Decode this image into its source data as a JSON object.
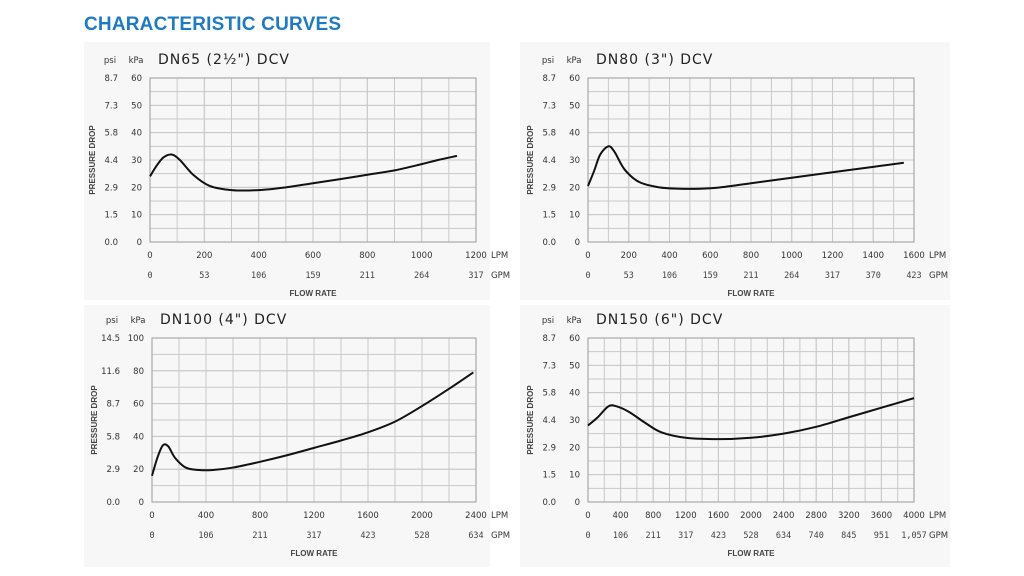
{
  "page": {
    "title": "CHARACTERISTIC CURVES"
  },
  "chart_data": [
    {
      "type": "line",
      "title": "DN65 (2½\") DCV",
      "ylabel": "PRESSURE DROP",
      "xlabel": "FLOW RATE",
      "y_units": [
        "psi",
        "kPa"
      ],
      "x_units": [
        "LPM",
        "GPM"
      ],
      "xlim": [
        0,
        1200
      ],
      "ylim": [
        0,
        60
      ],
      "x_ticks": [
        0,
        200,
        400,
        600,
        800,
        1000,
        1200
      ],
      "x_ticks_secondary": [
        "0",
        "53",
        "106",
        "159",
        "211",
        "264",
        "317"
      ],
      "y_ticks": [
        0,
        10,
        20,
        30,
        40,
        50,
        60
      ],
      "y_ticks_secondary": [
        "0.0",
        "1.5",
        "2.9",
        "4.4",
        "5.8",
        "7.3",
        "8.7"
      ],
      "grid": true,
      "series": [
        {
          "values": [
            [
              0,
              24
            ],
            [
              25,
              28
            ],
            [
              50,
              31
            ],
            [
              80,
              32
            ],
            [
              110,
              30
            ],
            [
              160,
              24.5
            ],
            [
              220,
              20.5
            ],
            [
              300,
              19
            ],
            [
              400,
              19
            ],
            [
              500,
              20
            ],
            [
              600,
              21.5
            ],
            [
              700,
              23
            ],
            [
              800,
              24.6
            ],
            [
              900,
              26.2
            ],
            [
              1000,
              28.5
            ],
            [
              1060,
              30
            ],
            [
              1130,
              31.5
            ]
          ]
        }
      ]
    },
    {
      "type": "line",
      "title": "DN80 (3\") DCV",
      "ylabel": "PRESSURE DROP",
      "xlabel": "FLOW RATE",
      "y_units": [
        "psi",
        "kPa"
      ],
      "x_units": [
        "LPM",
        "GPM"
      ],
      "xlim": [
        0,
        1600
      ],
      "ylim": [
        0,
        60
      ],
      "x_ticks": [
        0,
        200,
        400,
        600,
        800,
        1000,
        1200,
        1400,
        1600
      ],
      "x_ticks_secondary": [
        "0",
        "53",
        "106",
        "159",
        "211",
        "264",
        "317",
        "370",
        "423"
      ],
      "y_ticks": [
        0,
        10,
        20,
        30,
        40,
        50,
        60
      ],
      "y_ticks_secondary": [
        "0.0",
        "1.5",
        "2.9",
        "4.4",
        "5.8",
        "7.3",
        "8.7"
      ],
      "grid": true,
      "series": [
        {
          "values": [
            [
              0,
              20.5
            ],
            [
              30,
              26
            ],
            [
              60,
              32
            ],
            [
              100,
              35
            ],
            [
              130,
              33
            ],
            [
              180,
              26.5
            ],
            [
              250,
              22
            ],
            [
              350,
              20
            ],
            [
              450,
              19.5
            ],
            [
              550,
              19.5
            ],
            [
              650,
              20
            ],
            [
              800,
              21.5
            ],
            [
              1000,
              23.5
            ],
            [
              1200,
              25.5
            ],
            [
              1400,
              27.5
            ],
            [
              1550,
              29
            ]
          ]
        }
      ]
    },
    {
      "type": "line",
      "title": "DN100 (4\") DCV",
      "ylabel": "PRESSURE DROP",
      "xlabel": "FLOW RATE",
      "y_units": [
        "psi",
        "kPa"
      ],
      "x_units": [
        "LPM",
        "GPM"
      ],
      "xlim": [
        0,
        2400
      ],
      "ylim": [
        0,
        100
      ],
      "x_ticks": [
        0,
        400,
        800,
        1200,
        1600,
        2000,
        2400
      ],
      "x_ticks_secondary": [
        "0",
        "106",
        "211",
        "317",
        "423",
        "528",
        "634"
      ],
      "y_ticks": [
        0,
        20,
        40,
        60,
        80,
        100
      ],
      "y_ticks_secondary": [
        "0.0",
        "2.9",
        "5.8",
        "8.7",
        "11.6",
        "14.5"
      ],
      "grid": true,
      "series": [
        {
          "values": [
            [
              0,
              16
            ],
            [
              40,
              27
            ],
            [
              80,
              34.5
            ],
            [
              120,
              34
            ],
            [
              170,
              27
            ],
            [
              250,
              21
            ],
            [
              350,
              19.5
            ],
            [
              450,
              19.5
            ],
            [
              600,
              21
            ],
            [
              800,
              24.5
            ],
            [
              1000,
              28.5
            ],
            [
              1200,
              33
            ],
            [
              1400,
              37.5
            ],
            [
              1600,
              42.5
            ],
            [
              1800,
              49
            ],
            [
              2000,
              58.5
            ],
            [
              2200,
              69
            ],
            [
              2380,
              79
            ]
          ]
        }
      ]
    },
    {
      "type": "line",
      "title": "DN150 (6\") DCV",
      "ylabel": "PRESSURE DROP",
      "xlabel": "FLOW RATE",
      "y_units": [
        "psi",
        "kPa"
      ],
      "x_units": [
        "LPM",
        "GPM"
      ],
      "xlim": [
        0,
        4000
      ],
      "ylim": [
        0,
        60
      ],
      "x_ticks": [
        0,
        400,
        800,
        1200,
        1600,
        2000,
        2400,
        2800,
        3200,
        3600,
        4000
      ],
      "x_ticks_secondary": [
        "0",
        "106",
        "211",
        "317",
        "423",
        "528",
        "634",
        "740",
        "845",
        "951",
        "1,057"
      ],
      "y_ticks": [
        0,
        10,
        20,
        30,
        40,
        50,
        60
      ],
      "y_ticks_secondary": [
        "0.0",
        "1.5",
        "2.9",
        "4.4",
        "5.8",
        "7.3",
        "8.7"
      ],
      "grid": true,
      "series": [
        {
          "values": [
            [
              0,
              28
            ],
            [
              120,
              31
            ],
            [
              250,
              35
            ],
            [
              350,
              35
            ],
            [
              500,
              33
            ],
            [
              700,
              29
            ],
            [
              900,
              25.5
            ],
            [
              1200,
              23.5
            ],
            [
              1600,
              23
            ],
            [
              2000,
              23.5
            ],
            [
              2400,
              25
            ],
            [
              2800,
              27.5
            ],
            [
              3200,
              31
            ],
            [
              3600,
              34.5
            ],
            [
              4000,
              38
            ]
          ]
        }
      ]
    }
  ]
}
